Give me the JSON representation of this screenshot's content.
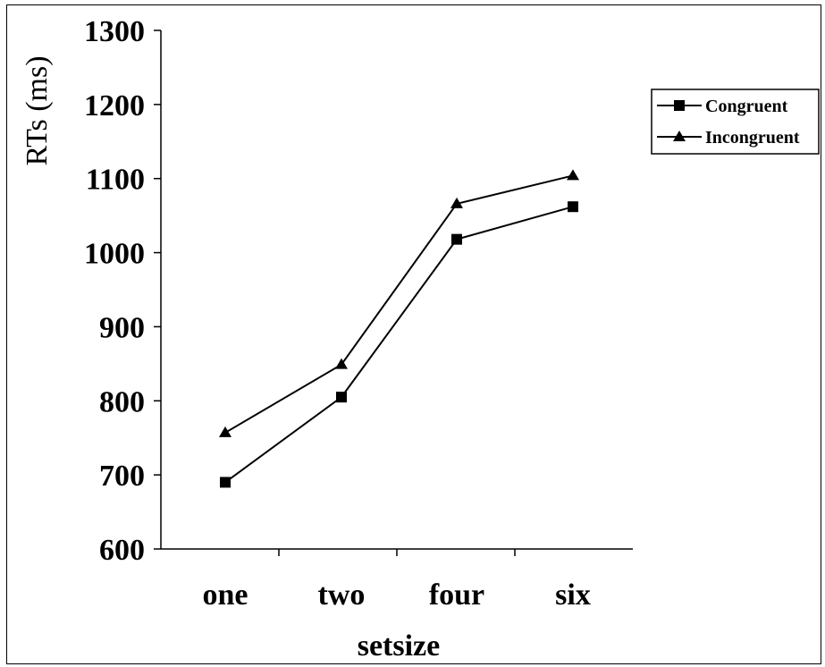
{
  "chart_data": {
    "type": "line",
    "title": "",
    "xlabel": "setsize",
    "ylabel": "RTs (ms)",
    "categories": [
      "one",
      "two",
      "four",
      "six"
    ],
    "ylim": [
      600,
      1300
    ],
    "yticks": [
      "600",
      "700",
      "800",
      "900",
      "1000",
      "1100",
      "1200",
      "1300"
    ],
    "grid": false,
    "legend_position": "right",
    "series": [
      {
        "name": "Congruent",
        "marker": "square",
        "color": "#000000",
        "values": [
          690,
          805,
          1018,
          1062
        ]
      },
      {
        "name": "Incongruent",
        "marker": "triangle",
        "color": "#000000",
        "values": [
          757,
          849,
          1066,
          1104
        ]
      }
    ]
  }
}
